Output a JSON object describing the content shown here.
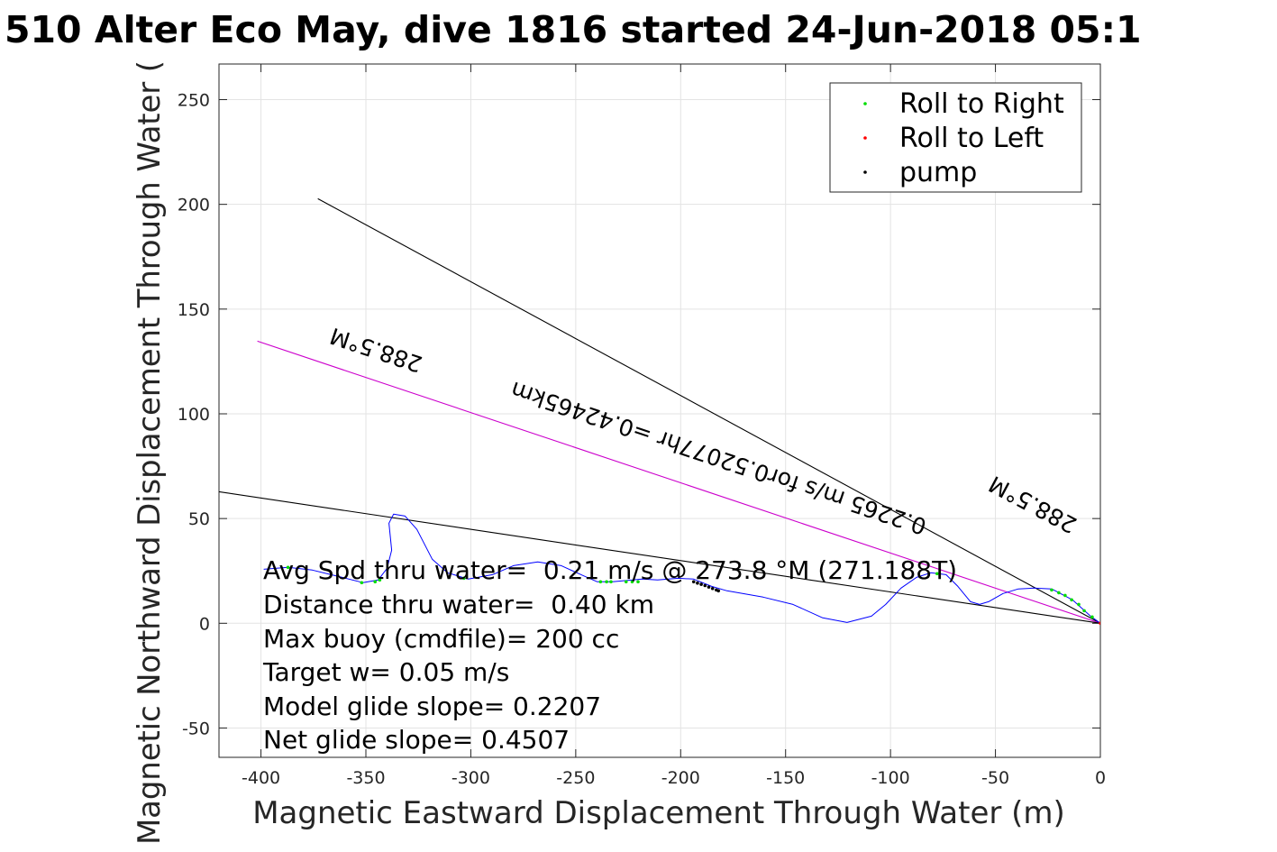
{
  "chart_data": {
    "type": "line",
    "title": "510 Alter Eco May, dive 1816 started 24-Jun-2018 05:1",
    "xlabel": "Magnetic Eastward Displacement Through Water (m)",
    "ylabel": "Magnetic Northward Displacement Through Water (",
    "xlim": [
      -420,
      0
    ],
    "ylim": [
      -64,
      267
    ],
    "grid": true,
    "xticks": [
      -400,
      -350,
      -300,
      -250,
      -200,
      -150,
      -100,
      -50,
      0
    ],
    "yticks": [
      -50,
      0,
      50,
      100,
      150,
      200,
      250
    ],
    "legend": {
      "placement": "top-right",
      "entries": [
        {
          "label": "Roll to Right",
          "color": "#00dd00"
        },
        {
          "label": "Roll to Left",
          "color": "#ff0000"
        },
        {
          "label": "pump",
          "color": "#000000"
        }
      ]
    },
    "track": {
      "name": "glider track",
      "color": "#0000ff",
      "x": [
        0,
        -4.7,
        -13.3,
        -23.2,
        -31.8,
        -39.1,
        -46.4,
        -53.3,
        -57.6,
        -61.9,
        -67.9,
        -73.5,
        -80.8,
        -87.6,
        -95.0,
        -102.3,
        -109.1,
        -120.7,
        -132.3,
        -146.5,
        -160.7,
        -177.9,
        -185.2,
        -193.8,
        -201.1,
        -211.0,
        -218.3,
        -232.4,
        -239.7,
        -246.6,
        -256.9,
        -268.1,
        -279.7,
        -289.6,
        -301.2,
        -311.1,
        -318.4,
        -325.7,
        -331.3,
        -336.8,
        -339.0,
        -337.7,
        -339.9,
        -344.1,
        -351.4,
        -361.3,
        -375.5,
        -387.1,
        -398.7
      ],
      "y": [
        0,
        3.4,
        11.2,
        16.4,
        16.8,
        16.4,
        14.2,
        10.3,
        9.0,
        10.3,
        17.6,
        23.2,
        24.1,
        21.9,
        16.8,
        9.0,
        3.4,
        0.4,
        2.6,
        9.0,
        12.5,
        15.5,
        17.6,
        21.1,
        21.5,
        20.7,
        21.1,
        19.8,
        19.8,
        22.8,
        27.5,
        29.3,
        27.5,
        23.2,
        21.1,
        24.1,
        30.6,
        44.8,
        51.2,
        52.1,
        47.8,
        34.9,
        26.2,
        20.7,
        19.4,
        21.9,
        25.4,
        26.7,
        25.8
      ]
    },
    "roll_right_points": {
      "x": [
        -23.2,
        -19.8,
        -16.8,
        -13.7,
        -10.3,
        -7.7,
        -3.9,
        -77.8,
        -387.1,
        -352.0,
        -345.6,
        -343.4,
        -303.3,
        -238.2,
        -235.3,
        -233.2,
        -226.0,
        -223.1,
        -220.3
      ],
      "y": [
        15.9,
        14.6,
        13.3,
        11.2,
        9.0,
        6.0,
        3.0,
        23.7,
        26.7,
        19.4,
        19.8,
        20.7,
        21.5,
        19.8,
        19.8,
        19.8,
        19.8,
        19.8,
        19.8
      ]
    },
    "roll_left_points": {
      "x": [
        0
      ],
      "y": [
        0
      ]
    },
    "pump_points": {
      "x": [
        -193.8,
        -192.0,
        -190.2,
        -188.4,
        -186.6,
        -184.8,
        -183.0,
        -182.0
      ],
      "y": [
        19.8,
        19.2,
        18.6,
        18.0,
        17.3,
        16.6,
        15.9,
        15.5
      ]
    },
    "reference_lines": [
      {
        "name": "upper-black-line",
        "color": "#000000",
        "x": [
          -372.9,
          0
        ],
        "y": [
          202.7,
          0
        ]
      },
      {
        "name": "magenta-line",
        "color": "#cc00cc",
        "x": [
          -401.7,
          0
        ],
        "y": [
          134.7,
          0
        ]
      },
      {
        "name": "lower-black-line",
        "color": "#000000",
        "x": [
          -420,
          0
        ],
        "y": [
          62.8,
          0
        ]
      }
    ],
    "annotations": {
      "heading_label_1": "288.5°M",
      "speed_label": "0.2265 m/s for0.52077hr =0.42465km",
      "heading_label_2": "288.5°M",
      "stats": [
        "Avg Spd thru water=  0.21 m/s @ 273.8 °M (271.188T)",
        "Distance thru water=  0.40 km",
        "Max buoy (cmdfile)= 200 cc",
        "Target w= 0.05 m/s",
        "Model glide slope= 0.2207",
        "Net glide slope= 0.4507"
      ]
    }
  }
}
